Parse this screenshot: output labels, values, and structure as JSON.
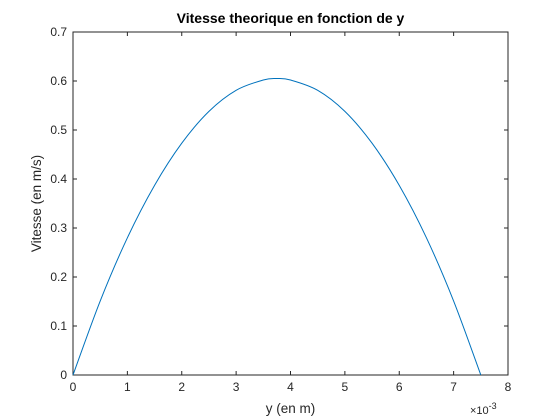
{
  "chart_data": {
    "type": "line",
    "title": "Vitesse theorique en fonction de y",
    "xlabel": "y (en m)",
    "ylabel": "Vitesse (en m/s)",
    "x_exponent_label": "×10",
    "x_exponent_power": "-3",
    "xlim": [
      0,
      0.008
    ],
    "ylim": [
      0,
      0.7
    ],
    "x_ticks": [
      0,
      0.001,
      0.002,
      0.003,
      0.004,
      0.005,
      0.006,
      0.007,
      0.008
    ],
    "x_tick_labels": [
      "0",
      "1",
      "2",
      "3",
      "4",
      "5",
      "6",
      "7",
      "8"
    ],
    "y_ticks": [
      0,
      0.1,
      0.2,
      0.3,
      0.4,
      0.5,
      0.6,
      0.7
    ],
    "y_tick_labels": [
      "0",
      "0.1",
      "0.2",
      "0.3",
      "0.4",
      "0.5",
      "0.6",
      "0.7"
    ],
    "grid": false,
    "series": [
      {
        "color": "#0072bd",
        "x": [
          0,
          0.0005,
          0.001,
          0.0015,
          0.002,
          0.0025,
          0.003,
          0.0035,
          0.00375,
          0.004,
          0.0045,
          0.005,
          0.0055,
          0.006,
          0.0065,
          0.007,
          0.0075
        ],
        "y": [
          0,
          0.151,
          0.28,
          0.387,
          0.473,
          0.538,
          0.581,
          0.602,
          0.605,
          0.602,
          0.581,
          0.538,
          0.473,
          0.387,
          0.28,
          0.151,
          0
        ]
      }
    ]
  }
}
